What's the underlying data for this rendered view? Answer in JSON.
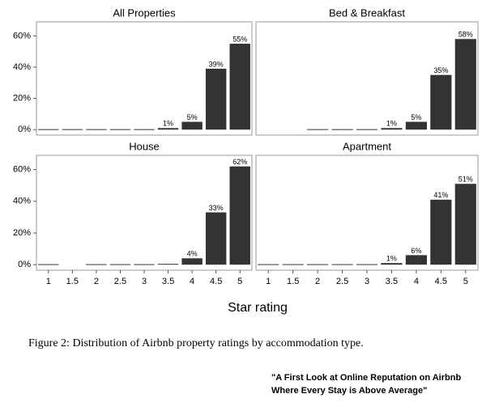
{
  "chart_data": [
    {
      "type": "bar",
      "title": "All Properties",
      "values": [
        0.3,
        0.3,
        0.3,
        0.3,
        0.3,
        1,
        5,
        39,
        55
      ],
      "value_labels": [
        null,
        null,
        null,
        null,
        null,
        "1%",
        "5%",
        "39%",
        "55%"
      ],
      "color": "#333333"
    },
    {
      "type": "bar",
      "title": "Bed & Breakfast",
      "values": [
        null,
        null,
        0.3,
        0.3,
        0.3,
        1,
        5,
        35,
        58
      ],
      "value_labels": [
        null,
        null,
        null,
        null,
        null,
        "1%",
        "5%",
        "35%",
        "58%"
      ],
      "color": "#333333"
    },
    {
      "type": "bar",
      "title": "House",
      "values": [
        0.3,
        null,
        0.3,
        0.3,
        0.3,
        0.5,
        4,
        33,
        62
      ],
      "value_labels": [
        null,
        null,
        null,
        null,
        null,
        null,
        "4%",
        "33%",
        "62%"
      ],
      "color": "#333333"
    },
    {
      "type": "bar",
      "title": "Apartment",
      "values": [
        0.3,
        0.3,
        0.3,
        0.3,
        0.3,
        1,
        6,
        41,
        51
      ],
      "value_labels": [
        null,
        null,
        null,
        null,
        null,
        "1%",
        "6%",
        "41%",
        "51%"
      ],
      "color": "#333333"
    }
  ],
  "x_axis": {
    "label": "Star rating",
    "categories": [
      "1",
      "1.5",
      "2",
      "2.5",
      "3",
      "3.5",
      "4",
      "4.5",
      "5"
    ]
  },
  "y_axis": {
    "ylim": [
      -3.5,
      69
    ],
    "yticks": [
      {
        "value": 0,
        "label": "0%"
      },
      {
        "value": 20,
        "label": "20%"
      },
      {
        "value": 40,
        "label": "40%"
      },
      {
        "value": 60,
        "label": "60%"
      }
    ]
  },
  "caption": "Figure 2: Distribution of Airbnb property ratings by accommodation type.",
  "source": [
    "\"A First Look at Online Reputation on Airbnb",
    "Where Every Stay is Above Average\""
  ]
}
